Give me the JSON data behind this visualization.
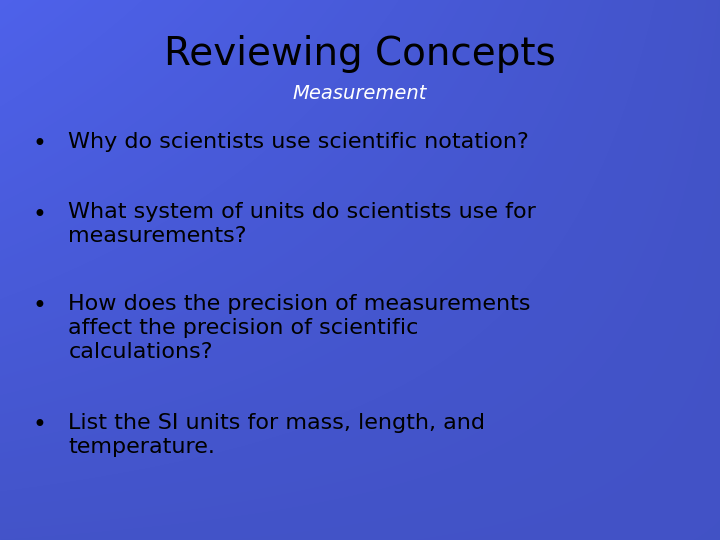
{
  "title": "Reviewing Concepts",
  "subtitle": "Measurement",
  "background_color": "#4455cc",
  "title_color": "#000000",
  "subtitle_color": "#ffffff",
  "bullet_color": "#000000",
  "title_fontsize": 28,
  "subtitle_fontsize": 14,
  "bullet_fontsize": 16,
  "bullets": [
    "Why do scientists use scientific notation?",
    "What system of units do scientists use for\nmeasurements?",
    "How does the precision of measurements\naffect the precision of scientific\ncalculations?",
    "List the SI units for mass, length, and\ntemperature."
  ]
}
